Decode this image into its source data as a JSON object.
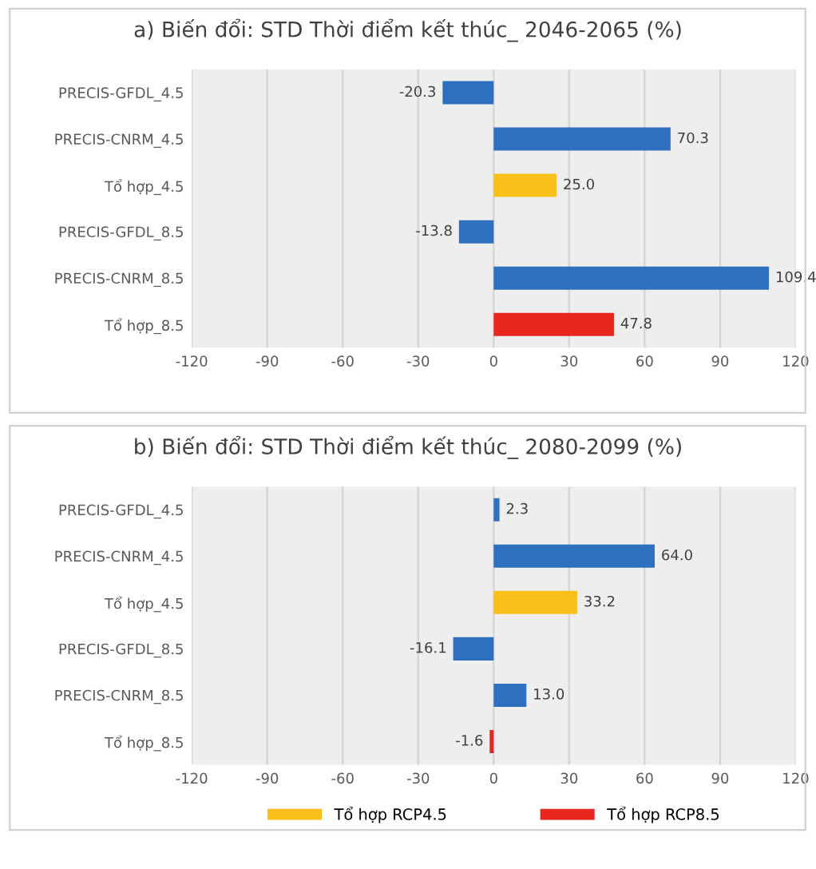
{
  "chart_data": [
    {
      "type": "bar",
      "orientation": "horizontal",
      "stacked": true,
      "title": "a) Biến đổi: STD Thời điểm kết thúc_ 2046-2065 (%)",
      "categories": [
        "PRECIS-GFDL_4.5",
        "PRECIS-CNRM_4.5",
        "Tổ hợp_4.5",
        "PRECIS-GFDL_8.5",
        "PRECIS-CNRM_8.5",
        "Tổ hợp_8.5"
      ],
      "series": [
        {
          "color": "#2e6fc0",
          "values": [
            -20.3,
            70.3,
            null,
            -13.8,
            109.4,
            null
          ],
          "value_labels": [
            "-20.3",
            "70.3",
            null,
            "-13.8",
            "109.4",
            null
          ]
        },
        {
          "color": "#fbbf1a",
          "values": [
            null,
            null,
            25.0,
            null,
            null,
            null
          ],
          "value_labels": [
            null,
            null,
            "25.0",
            null,
            null,
            null
          ]
        },
        {
          "color": "#e8261f",
          "values": [
            null,
            null,
            null,
            null,
            null,
            47.8
          ],
          "value_labels": [
            null,
            null,
            null,
            null,
            null,
            "47.8"
          ]
        }
      ],
      "xlim": [
        -120,
        120
      ],
      "xticks": [
        -120,
        -90,
        -60,
        -30,
        0,
        30,
        60,
        90,
        120
      ],
      "grid": "x"
    },
    {
      "type": "bar",
      "orientation": "horizontal",
      "stacked": true,
      "title": "b) Biến đổi: STD Thời điểm kết thúc_ 2080-2099 (%)",
      "categories": [
        "PRECIS-GFDL_4.5",
        "PRECIS-CNRM_4.5",
        "Tổ hợp_4.5",
        "PRECIS-GFDL_8.5",
        "PRECIS-CNRM_8.5",
        "Tổ hợp_8.5"
      ],
      "series": [
        {
          "color": "#2e6fc0",
          "values": [
            2.3,
            64.0,
            null,
            -16.1,
            13.0,
            null
          ],
          "value_labels": [
            "2.3",
            "64.0",
            null,
            "-16.1",
            "13.0",
            null
          ]
        },
        {
          "name": "Tổ hợp RCP4.5",
          "color": "#fbbf1a",
          "values": [
            null,
            null,
            33.2,
            null,
            null,
            null
          ],
          "value_labels": [
            null,
            null,
            "33.2",
            null,
            null,
            null
          ]
        },
        {
          "name": "Tổ hợp RCP8.5",
          "color": "#e8261f",
          "values": [
            null,
            null,
            null,
            null,
            null,
            -1.6
          ],
          "value_labels": [
            null,
            null,
            null,
            null,
            null,
            "-1.6"
          ]
        }
      ],
      "xlim": [
        -120,
        120
      ],
      "xticks": [
        -120,
        -90,
        -60,
        -30,
        0,
        30,
        60,
        90,
        120
      ],
      "grid": "x",
      "legend": "bottom"
    }
  ]
}
